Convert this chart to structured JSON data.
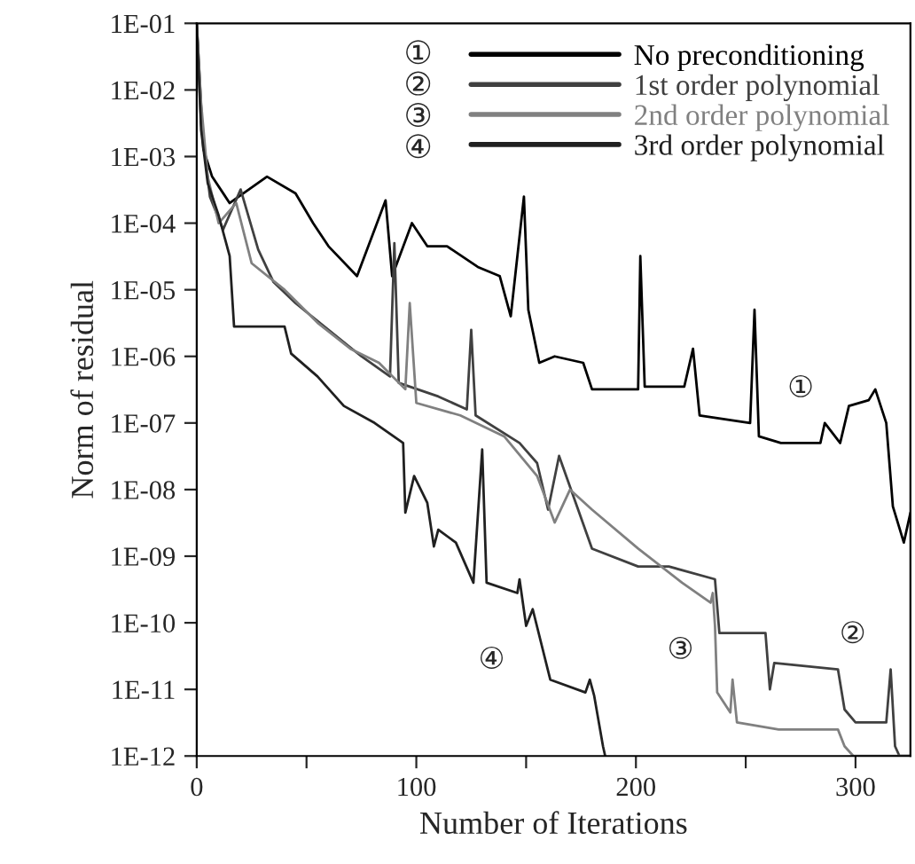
{
  "chart_data": {
    "type": "line",
    "xlabel": "Number of Iterations",
    "ylabel": "Norm of residual",
    "log": "y",
    "xlim": [
      0,
      325
    ],
    "xticks": [
      0,
      {
        "value": 50,
        "label": null
      },
      100,
      {
        "value": 150,
        "label": null
      },
      200,
      {
        "value": 250,
        "label": null
      },
      300
    ],
    "ylim": [
      1e-12,
      0.1
    ],
    "yticks": [
      {
        "value": 0.1,
        "label": "1E-01"
      },
      {
        "value": 0.01,
        "label": "1E-02"
      },
      {
        "value": 0.001,
        "label": "1E-03"
      },
      {
        "value": 0.0001,
        "label": "1E-04"
      },
      {
        "value": 1e-05,
        "label": "1E-05"
      },
      {
        "value": 1e-06,
        "label": "1E-06"
      },
      {
        "value": 1e-07,
        "label": "1E-07"
      },
      {
        "value": 1e-08,
        "label": "1E-08"
      },
      {
        "value": 1e-09,
        "label": "1E-09"
      },
      {
        "value": 1e-10,
        "label": "1E-10"
      },
      {
        "value": 1e-11,
        "label": "1E-11"
      },
      {
        "value": 1e-12,
        "label": "1E-12"
      }
    ],
    "grid": false,
    "legend": "top right",
    "marker": "none",
    "line_style": "solid",
    "series": [
      {
        "name": "No preconditioning",
        "color": "#000000",
        "x": [
          0,
          3,
          7,
          15,
          32,
          45,
          53,
          60,
          73,
          86,
          89,
          98,
          105,
          114,
          128,
          138,
          143,
          149,
          151,
          156,
          163,
          176,
          180,
          201,
          202,
          204,
          222,
          226,
          229,
          252,
          254,
          256,
          266,
          284,
          286,
          293,
          297,
          306,
          309,
          314,
          317,
          322,
          325
        ],
        "values": [
          0.1,
          0.0013,
          0.0005,
          0.0002,
          0.0005,
          0.00028,
          0.0001,
          4.5e-05,
          1.6e-05,
          0.00022,
          1.6e-05,
          0.0001,
          4.5e-05,
          4.5e-05,
          2.2e-05,
          1.6e-05,
          4e-06,
          0.00025,
          5e-06,
          8e-07,
          1e-06,
          8e-07,
          3.2e-07,
          3.2e-07,
          3.2e-05,
          3.5e-07,
          3.5e-07,
          1.3e-06,
          1.3e-07,
          1e-07,
          5e-06,
          6.3e-08,
          5e-08,
          5e-08,
          1e-07,
          5e-08,
          1.8e-07,
          2.2e-07,
          3.2e-07,
          1e-07,
          5.6e-09,
          1.6e-09,
          4.5e-09
        ]
      },
      {
        "name": "1st order polynomial",
        "color": "#404040",
        "x": [
          0,
          2,
          6,
          12,
          20,
          28,
          35,
          45,
          60,
          75,
          88,
          90,
          92,
          110,
          123,
          125,
          127,
          147,
          155,
          160,
          165,
          180,
          201,
          215,
          236,
          238,
          259,
          261,
          263,
          292,
          295,
          300,
          314,
          316,
          318,
          320,
          325
        ],
        "values": [
          0.1,
          0.0032,
          0.00025,
          8e-05,
          0.00032,
          4e-05,
          1.3e-05,
          6.3e-06,
          2.5e-06,
          1e-06,
          5e-07,
          5e-05,
          4e-07,
          2.5e-07,
          1.6e-07,
          2.5e-06,
          1.3e-07,
          5e-08,
          2.5e-08,
          5e-09,
          3.2e-08,
          1.3e-09,
          7e-10,
          7e-10,
          4.5e-10,
          7e-11,
          7e-11,
          1e-11,
          2.5e-11,
          2e-11,
          5e-12,
          3.2e-12,
          3.2e-12,
          2e-11,
          1.4e-12,
          1e-12,
          1e-12
        ]
      },
      {
        "name": "2nd order polynomial",
        "color": "#808080",
        "x": [
          0,
          2,
          5,
          10,
          18,
          25,
          40,
          55,
          70,
          83,
          95,
          97,
          100,
          120,
          140,
          155,
          163,
          170,
          180,
          201,
          221,
          234,
          235,
          236,
          237,
          243,
          244,
          246,
          265,
          292,
          295,
          299,
          325
        ],
        "values": [
          0.1,
          0.0063,
          0.0005,
          0.0001,
          0.0002,
          2.5e-05,
          1e-05,
          3.2e-06,
          1.3e-06,
          8e-07,
          3.2e-07,
          6.3e-06,
          2e-07,
          1.3e-07,
          6.3e-08,
          1.6e-08,
          3.2e-09,
          1e-08,
          5e-09,
          1.3e-09,
          4e-10,
          2e-10,
          2.8e-10,
          9e-11,
          9e-12,
          4.5e-12,
          1.4e-11,
          3.2e-12,
          2.5e-12,
          2.5e-12,
          1.4e-12,
          1e-12,
          1e-12
        ]
      },
      {
        "name": "3rd order polynomial",
        "color": "#202020",
        "x": [
          0,
          2,
          5,
          10,
          15,
          17,
          40,
          43,
          55,
          67,
          81,
          94,
          95,
          99,
          105,
          108,
          110,
          118,
          126,
          130,
          132,
          146,
          147,
          150,
          153,
          161,
          177,
          179,
          181,
          185,
          186
        ],
        "values": [
          0.1,
          0.0025,
          0.0004,
          0.00013,
          3.2e-05,
          2.8e-06,
          2.8e-06,
          1.1e-06,
          5e-07,
          1.8e-07,
          1e-07,
          5e-08,
          4.5e-09,
          1.6e-08,
          6.3e-09,
          1.4e-09,
          2.5e-09,
          1.6e-09,
          4e-10,
          4e-08,
          4e-10,
          2.8e-10,
          4.5e-10,
          9e-11,
          1.6e-10,
          1.4e-11,
          9e-12,
          1.4e-11,
          8e-12,
          1.4e-12,
          1e-12
        ]
      }
    ],
    "annotations": [
      {
        "text": "①",
        "x": 284,
        "y": 5e-08
      },
      {
        "text": "②",
        "x": 292,
        "y": 2e-11
      },
      {
        "text": "③",
        "x": 236,
        "y": 9e-11
      },
      {
        "text": "④",
        "x": 150,
        "y": 9e-11
      }
    ]
  }
}
